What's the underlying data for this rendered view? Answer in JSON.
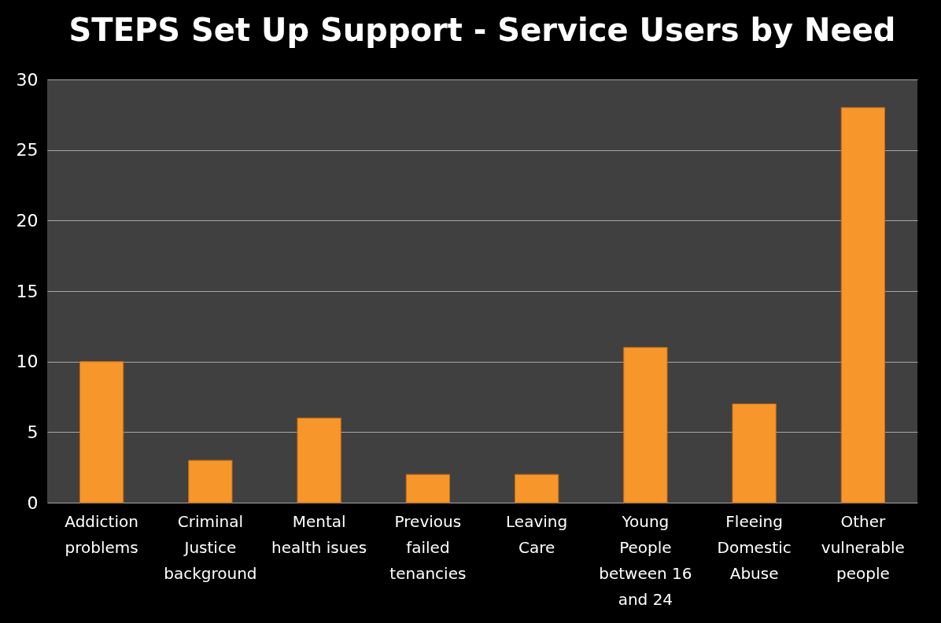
{
  "chart_data": {
    "type": "bar",
    "title": "STEPS Set Up Support - Service Users by Need",
    "categories": [
      "Addiction problems",
      "Criminal Justice background",
      "Mental health isues",
      "Previous failed tenancies",
      "Leaving Care",
      "Young People between 16 and 24",
      "Fleeing Domestic Abuse",
      "Other vulnerable people"
    ],
    "values": [
      10,
      3,
      6,
      2,
      2,
      11,
      7,
      28
    ],
    "color": "#f7962b",
    "ylim": [
      0,
      30
    ],
    "yticks": [
      0,
      5,
      10,
      15,
      20,
      25,
      30
    ],
    "grid": "y"
  }
}
